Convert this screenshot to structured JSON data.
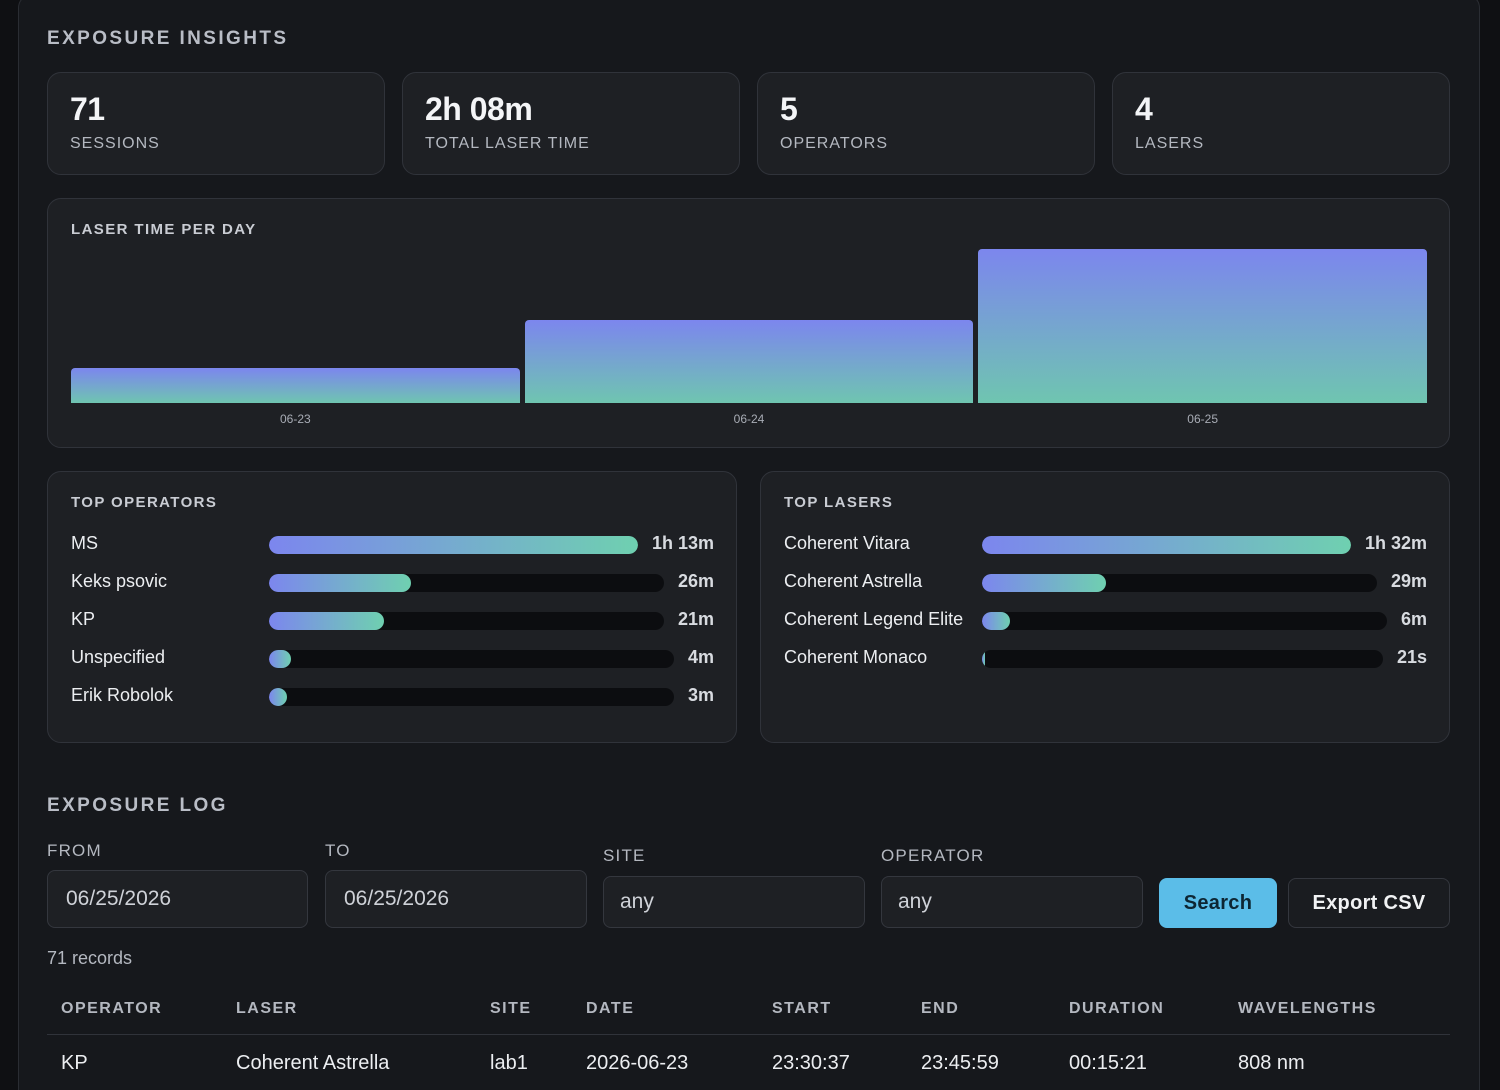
{
  "insights": {
    "title": "EXPOSURE INSIGHTS",
    "stats": [
      {
        "value": "71",
        "label": "SESSIONS"
      },
      {
        "value": "2h 08m",
        "label": "TOTAL LASER TIME"
      },
      {
        "value": "5",
        "label": "OPERATORS"
      },
      {
        "value": "4",
        "label": "LASERS"
      }
    ]
  },
  "chart_data": {
    "type": "bar",
    "title": "LASER TIME PER DAY",
    "categories": [
      "06-23",
      "06-24",
      "06-25"
    ],
    "values": [
      0.23,
      0.54,
      1.0
    ],
    "ylim": [
      0,
      1.0
    ],
    "grid": false
  },
  "top_operators": {
    "title": "TOP OPERATORS",
    "items": [
      {
        "name": "MS",
        "value": "1h 13m",
        "fraction": 1.0
      },
      {
        "name": "Keks psovic",
        "value": "26m",
        "fraction": 0.36
      },
      {
        "name": "KP",
        "value": "21m",
        "fraction": 0.29
      },
      {
        "name": "Unspecified",
        "value": "4m",
        "fraction": 0.055
      },
      {
        "name": "Erik Robolok",
        "value": "3m",
        "fraction": 0.041
      }
    ]
  },
  "top_lasers": {
    "title": "TOP LASERS",
    "items": [
      {
        "name": "Coherent Vitara",
        "value": "1h 32m",
        "fraction": 1.0
      },
      {
        "name": "Coherent Astrella",
        "value": "29m",
        "fraction": 0.315
      },
      {
        "name": "Coherent Legend Elite",
        "value": "6m",
        "fraction": 0.07
      },
      {
        "name": "Coherent Monaco",
        "value": "21s",
        "fraction": 0.004
      }
    ]
  },
  "log": {
    "title": "EXPOSURE LOG",
    "filters": {
      "from_label": "FROM",
      "from_value": "06/25/2026",
      "to_label": "TO",
      "to_value": "06/25/2026",
      "site_label": "SITE",
      "site_value": "any",
      "operator_label": "OPERATOR",
      "operator_value": "any"
    },
    "search_label": "Search",
    "export_label": "Export CSV",
    "records": "71 records",
    "columns": [
      "OPERATOR",
      "LASER",
      "SITE",
      "DATE",
      "START",
      "END",
      "DURATION",
      "WAVELENGTHS"
    ],
    "rows": [
      [
        "KP",
        "Coherent Astrella",
        "lab1",
        "2026-06-23",
        "23:30:37",
        "23:45:59",
        "00:15:21",
        "808 nm"
      ]
    ]
  },
  "colors": {
    "accent": "#5bbde8",
    "bar_top": "#7c86ee",
    "bar_bottom": "#6fc5b0"
  }
}
